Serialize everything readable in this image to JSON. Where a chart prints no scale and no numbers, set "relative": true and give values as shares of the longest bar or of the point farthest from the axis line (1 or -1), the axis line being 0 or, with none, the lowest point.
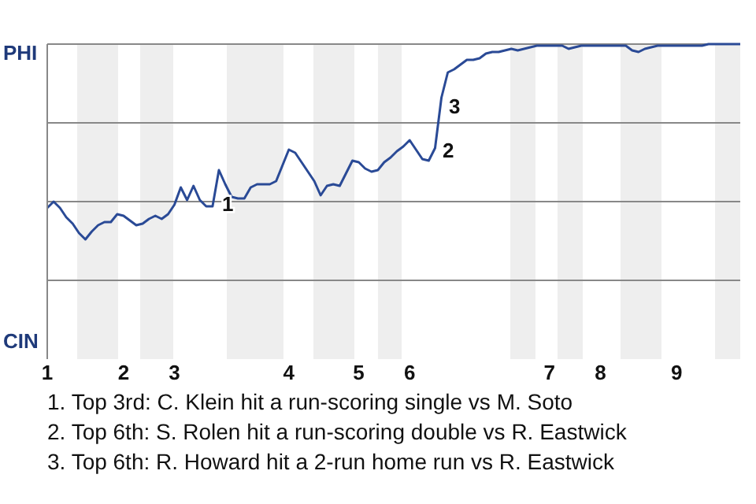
{
  "chart_data": {
    "type": "line",
    "relative": true,
    "categories": [
      "1",
      null,
      null,
      null,
      null,
      null,
      null,
      null,
      null,
      null,
      null,
      null,
      "2",
      null,
      null,
      null,
      null,
      null,
      null,
      null,
      "3",
      null,
      null,
      null,
      null,
      null,
      null,
      null,
      null,
      null,
      null,
      null,
      null,
      null,
      null,
      null,
      null,
      null,
      "4",
      null,
      null,
      null,
      null,
      null,
      null,
      null,
      null,
      null,
      null,
      "5",
      null,
      null,
      null,
      null,
      null,
      null,
      null,
      "6",
      null,
      null,
      null,
      null,
      null,
      null,
      null,
      null,
      null,
      null,
      null,
      null,
      null,
      null,
      null,
      null,
      null,
      null,
      null,
      null,
      null,
      "7",
      null,
      null,
      null,
      null,
      null,
      null,
      null,
      "8",
      null,
      null,
      null,
      null,
      null,
      null,
      null,
      null,
      null,
      null,
      null,
      "9",
      null,
      null,
      null,
      null,
      null,
      null,
      null,
      null,
      null,
      null
    ],
    "series": [
      {
        "color": "#2a4a96",
        "values": [
          0.48,
          0.5,
          0.48,
          0.45,
          0.43,
          0.4,
          0.38,
          0.405,
          0.425,
          0.435,
          0.435,
          0.46,
          0.455,
          0.44,
          0.425,
          0.43,
          0.445,
          0.455,
          0.445,
          0.46,
          0.49,
          0.545,
          0.505,
          0.55,
          0.505,
          0.485,
          0.485,
          0.6,
          0.555,
          0.515,
          0.51,
          0.51,
          0.545,
          0.555,
          0.555,
          0.555,
          0.565,
          0.615,
          0.665,
          0.655,
          0.625,
          0.595,
          0.565,
          0.52,
          0.55,
          0.555,
          0.55,
          0.59,
          0.63,
          0.625,
          0.605,
          0.595,
          0.6,
          0.625,
          0.64,
          0.66,
          0.675,
          0.695,
          0.665,
          0.635,
          0.63,
          0.67,
          0.83,
          0.91,
          0.92,
          0.935,
          0.95,
          0.95,
          0.955,
          0.97,
          0.975,
          0.975,
          0.98,
          0.985,
          0.98,
          0.985,
          0.99,
          0.995,
          0.995,
          0.995,
          0.995,
          0.995,
          0.985,
          0.99,
          0.995,
          0.995,
          0.995,
          0.995,
          0.995,
          0.995,
          0.995,
          0.995,
          0.98,
          0.975,
          0.985,
          0.99,
          0.995,
          0.995,
          0.995,
          0.995,
          0.995,
          0.995,
          0.995,
          0.995,
          1,
          1,
          1,
          1,
          1,
          1
        ]
      }
    ],
    "grid": "y",
    "marker": "none",
    "annotations": [
      "PHI",
      "CIN",
      "1",
      "2",
      "3",
      "1. Top 3rd: C. Klein hit a run-scoring single vs M. Soto",
      "2. Top 6th: S. Rolen hit a run-scoring double vs R. Eastwick",
      "3. Top 6th: R. Howard hit a 2-run home run vs R. Eastwick"
    ]
  }
}
